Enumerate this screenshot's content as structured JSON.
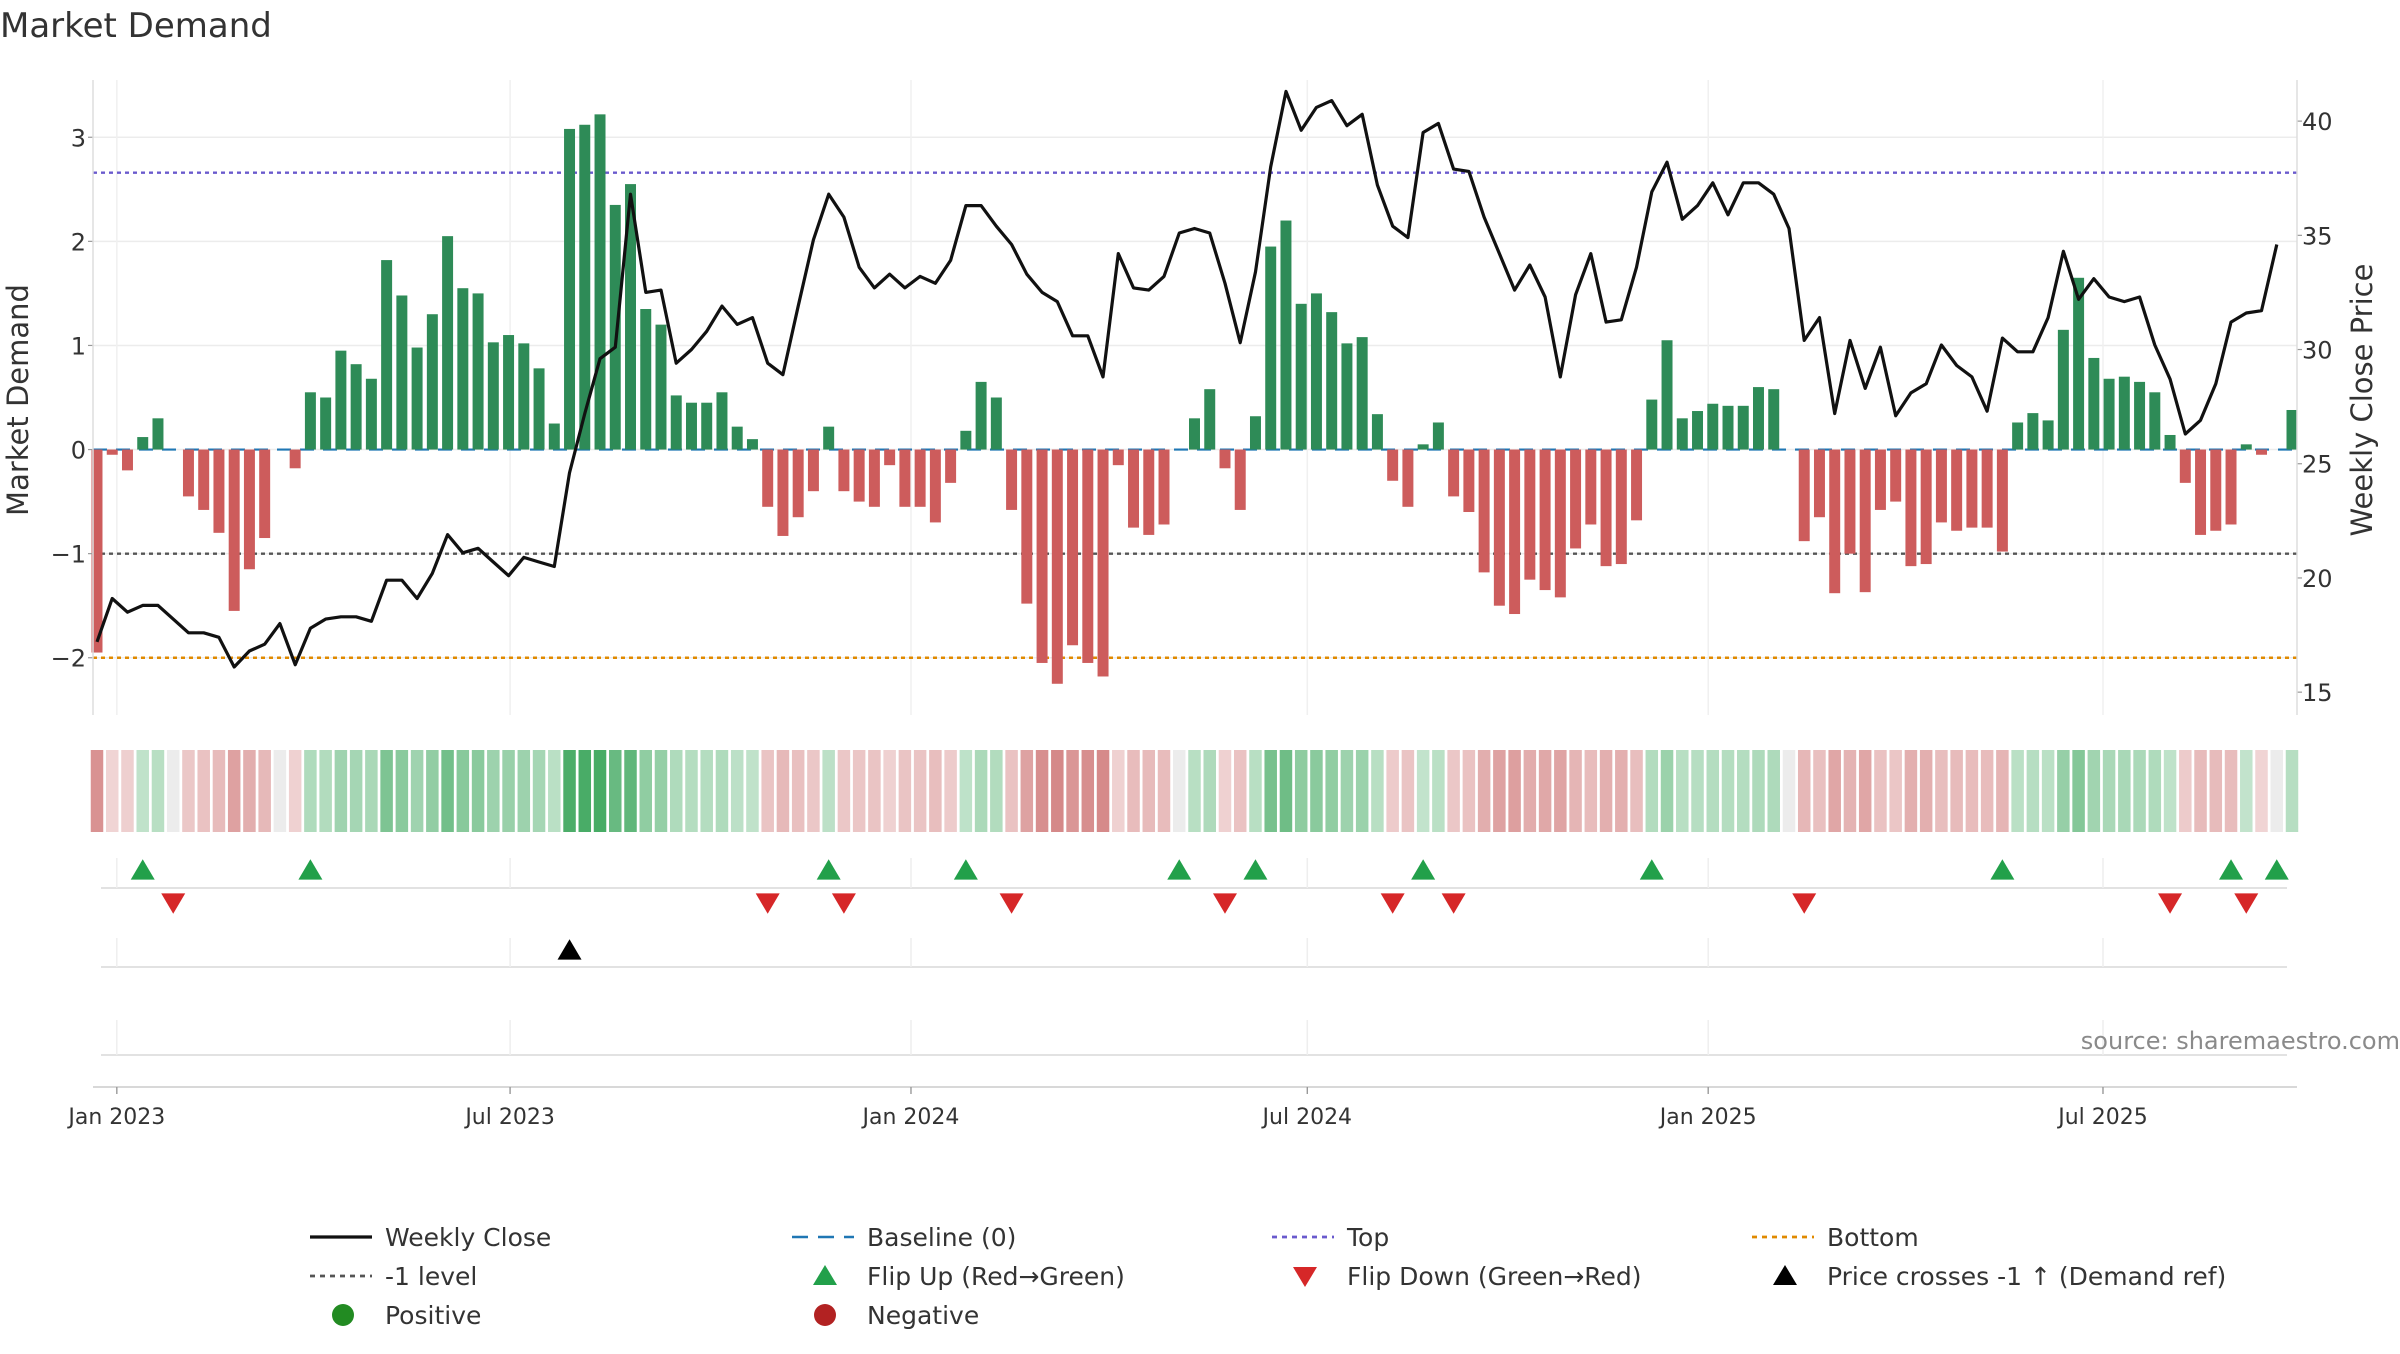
{
  "title": "Market Demand",
  "source": "source: sharemaestro.com",
  "colors": {
    "positive_bar": "#2e8b57",
    "negative_bar": "#cd5c5c",
    "close_line": "#111111",
    "baseline": "#1f77b4",
    "top_line": "#6a5acd",
    "bottom_line": "#e08a00",
    "minus_one_line": "#555555",
    "flip_up": "#22a04a",
    "flip_down": "#d62728",
    "cross_marker": "#000000",
    "positive_dot": "#228b22",
    "negative_dot": "#b22222"
  },
  "legend": [
    {
      "label": "Weekly Close",
      "kind": "line-solid",
      "color": "#111111"
    },
    {
      "label": "Baseline (0)",
      "kind": "line-dashed",
      "color": "#1f77b4"
    },
    {
      "label": "Top",
      "kind": "line-dotted",
      "color": "#6a5acd"
    },
    {
      "label": "Bottom",
      "kind": "line-dotted",
      "color": "#e08a00"
    },
    {
      "label": "-1 level",
      "kind": "line-dotted",
      "color": "#555555"
    },
    {
      "label": "Flip Up (Red→Green)",
      "kind": "tri-up",
      "color": "#22a04a"
    },
    {
      "label": "Flip Down (Green→Red)",
      "kind": "tri-down",
      "color": "#d62728"
    },
    {
      "label": "Price crosses -1 ↑ (Demand ref)",
      "kind": "tri-up",
      "color": "#000000"
    },
    {
      "label": "Positive",
      "kind": "dot",
      "color": "#228b22"
    },
    {
      "label": "Negative",
      "kind": "dot",
      "color": "#b22222"
    }
  ],
  "chart_data": {
    "type": "bar",
    "title": "Market Demand",
    "ylabel": "Market Demand",
    "y2label": "Weekly Close Price",
    "ylim": [
      -2.55,
      3.55
    ],
    "y2lim": [
      14,
      41.8
    ],
    "yticks": [
      -2,
      -1,
      0,
      1,
      2,
      3
    ],
    "ytick_labels": [
      "−2",
      "−1",
      "0",
      "1",
      "2",
      "3"
    ],
    "y2ticks": [
      15,
      20,
      25,
      30,
      35,
      40
    ],
    "y2tick_labels": [
      "15",
      "20",
      "25",
      "30",
      "35",
      "40"
    ],
    "x_start": "2022-12-23",
    "week_count": 145,
    "xticks": [
      {
        "label": "Jan 2023",
        "week": 1.3
      },
      {
        "label": "Jul 2023",
        "week": 27.1
      },
      {
        "label": "Jan 2024",
        "week": 53.4
      },
      {
        "label": "Jul 2024",
        "week": 79.4
      },
      {
        "label": "Jan 2025",
        "week": 105.7
      },
      {
        "label": "Jul 2025",
        "week": 131.6
      }
    ],
    "reference_lines": {
      "top": 2.66,
      "bottom": -2.0,
      "minus_one": -1.0,
      "baseline": 0
    },
    "demand": [
      -1.95,
      -0.05,
      -0.2,
      0.12,
      0.3,
      0,
      -0.45,
      -0.58,
      -0.8,
      -1.55,
      -1.15,
      -0.85,
      0,
      -0.18,
      0.55,
      0.5,
      0.95,
      0.82,
      0.68,
      1.82,
      1.48,
      0.98,
      1.3,
      2.05,
      1.55,
      1.5,
      1.03,
      1.1,
      1.02,
      0.78,
      0.25,
      3.08,
      3.12,
      3.22,
      2.35,
      2.55,
      1.35,
      1.2,
      0.52,
      0.45,
      0.45,
      0.55,
      0.22,
      0.1,
      -0.55,
      -0.83,
      -0.65,
      -0.4,
      0.22,
      -0.4,
      -0.5,
      -0.55,
      -0.15,
      -0.55,
      -0.55,
      -0.7,
      -0.32,
      0.18,
      0.65,
      0.5,
      -0.58,
      -1.48,
      -2.05,
      -2.25,
      -1.88,
      -2.05,
      -2.18,
      -0.15,
      -0.75,
      -0.82,
      -0.72,
      0,
      0.3,
      0.58,
      -0.18,
      -0.58,
      0.32,
      1.95,
      2.2,
      1.4,
      1.5,
      1.32,
      1.02,
      1.08,
      0.34,
      -0.3,
      -0.55,
      0.05,
      0.26,
      -0.45,
      -0.6,
      -1.18,
      -1.5,
      -1.58,
      -1.25,
      -1.35,
      -1.42,
      -0.95,
      -0.72,
      -1.12,
      -1.1,
      -0.68,
      0.48,
      1.05,
      0.3,
      0.37,
      0.44,
      0.42,
      0.42,
      0.6,
      0.58,
      0,
      -0.88,
      -0.65,
      -1.38,
      -1.0,
      -1.37,
      -0.58,
      -0.5,
      -1.12,
      -1.1,
      -0.7,
      -0.78,
      -0.75,
      -0.75,
      -0.98,
      0.26,
      0.35,
      0.28,
      1.15,
      1.65,
      0.88,
      0.68,
      0.7,
      0.65,
      0.55,
      0.14,
      -0.32,
      -0.82,
      -0.78,
      -0.72,
      0.05,
      -0.05,
      0,
      0.38
    ],
    "close": [
      17.2,
      19.1,
      18.5,
      18.8,
      18.8,
      18.2,
      17.6,
      17.6,
      17.4,
      16.1,
      16.8,
      17.1,
      18,
      16.2,
      17.8,
      18.2,
      18.3,
      18.3,
      18.1,
      19.9,
      19.9,
      19.1,
      20.2,
      21.9,
      21.1,
      21.3,
      20.7,
      20.1,
      20.9,
      20.7,
      20.5,
      24.6,
      27.2,
      29.6,
      30.1,
      36.8,
      32.5,
      32.6,
      29.4,
      30,
      30.8,
      31.9,
      31.1,
      31.4,
      29.4,
      28.9,
      31.9,
      34.8,
      36.8,
      35.8,
      33.6,
      32.7,
      33.3,
      32.7,
      33.2,
      32.9,
      33.9,
      36.3,
      36.3,
      35.4,
      34.6,
      33.3,
      32.5,
      32.1,
      30.6,
      30.6,
      28.8,
      34.2,
      32.7,
      32.6,
      33.2,
      35.1,
      35.3,
      35.1,
      32.9,
      30.3,
      33.4,
      38,
      41.3,
      39.6,
      40.6,
      40.9,
      39.8,
      40.3,
      37.2,
      35.4,
      34.9,
      39.5,
      39.9,
      37.9,
      37.8,
      35.8,
      34.2,
      32.6,
      33.7,
      32.3,
      28.8,
      32.4,
      34.2,
      31.2,
      31.3,
      33.6,
      36.9,
      38.2,
      35.7,
      36.3,
      37.3,
      35.9,
      37.3,
      37.3,
      36.8,
      35.3,
      30.4,
      31.4,
      27.2,
      30.4,
      28.3,
      30.1,
      27.1,
      28.1,
      28.5,
      30.2,
      29.3,
      28.8,
      27.3,
      30.5,
      29.9,
      29.9,
      31.4,
      34.3,
      32.2,
      33.1,
      32.3,
      32.1,
      32.3,
      30.2,
      28.7,
      26.3,
      26.9,
      28.5,
      31.2,
      31.6,
      31.7,
      34.6
    ],
    "flip_up_weeks": [
      3,
      14,
      48,
      57,
      71,
      76,
      87,
      102,
      125,
      140,
      143
    ],
    "flip_down_weeks": [
      5,
      44,
      49,
      60,
      74,
      85,
      89,
      112,
      136,
      141
    ],
    "price_cross_weeks": [
      31
    ]
  }
}
